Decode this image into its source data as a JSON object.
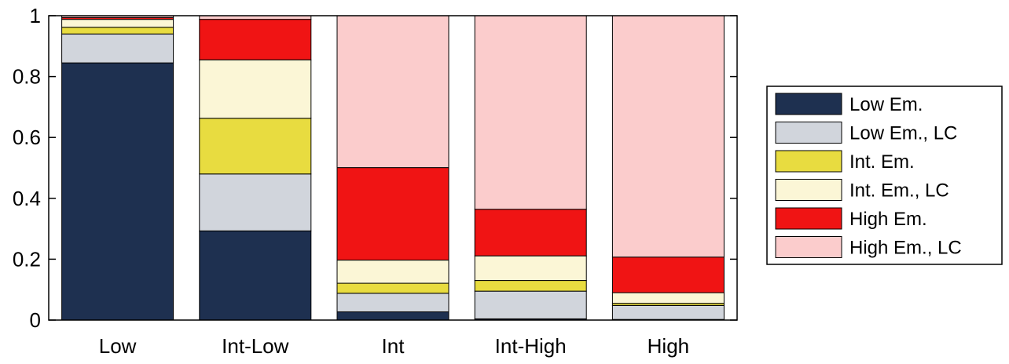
{
  "chart_data": {
    "type": "bar",
    "stacked": true,
    "categories": [
      "Low",
      "Int-Low",
      "Int",
      "Int-High",
      "High"
    ],
    "series": [
      {
        "name": "Low Em.",
        "color": "#1e3050",
        "values": [
          0.845,
          0.293,
          0.027,
          0.004,
          0.002
        ]
      },
      {
        "name": "Low Em., LC",
        "color": "#d1d5dc",
        "values": [
          0.095,
          0.187,
          0.061,
          0.091,
          0.046
        ]
      },
      {
        "name": "Int. Em.",
        "color": "#e8dc40",
        "values": [
          0.022,
          0.183,
          0.033,
          0.035,
          0.007
        ]
      },
      {
        "name": "Int. Em., LC",
        "color": "#fbf6d6",
        "values": [
          0.026,
          0.192,
          0.076,
          0.081,
          0.035
        ]
      },
      {
        "name": "High Em.",
        "color": "#f01414",
        "values": [
          0.006,
          0.133,
          0.304,
          0.153,
          0.117
        ]
      },
      {
        "name": "High Em., LC",
        "color": "#fbcccc",
        "values": [
          0.006,
          0.012,
          0.499,
          0.636,
          0.793
        ]
      }
    ],
    "yticks": [
      "0",
      "0.2",
      "0.4",
      "0.6",
      "0.8",
      "1"
    ],
    "ytick_values": [
      0,
      0.2,
      0.4,
      0.6,
      0.8,
      1
    ],
    "ylim": [
      0,
      1
    ],
    "grid": false,
    "legend_position": "right"
  }
}
